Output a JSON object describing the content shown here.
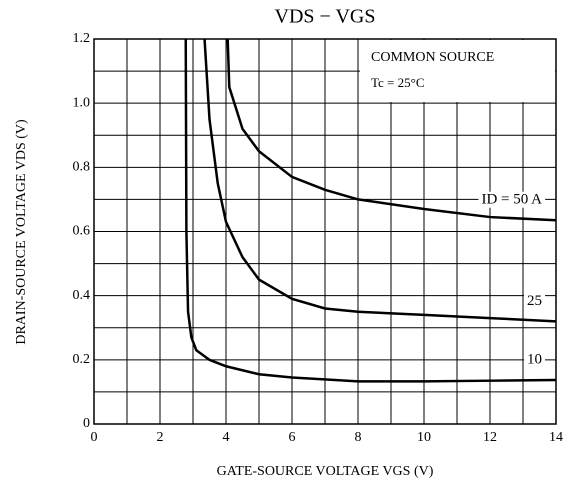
{
  "chart_data": {
    "type": "line",
    "title": "VDS − VGS",
    "x_label": "GATE-SOURCE VOLTAGE  VGS  (V)",
    "y_label": "DRAIN-SOURCE VOLTAGE  VDS  (V)",
    "annotations": [
      "COMMON SOURCE",
      "Tc = 25°C"
    ],
    "xlim": [
      0,
      14
    ],
    "xticks": [
      0,
      2,
      4,
      6,
      8,
      10,
      12,
      14
    ],
    "ylim": [
      0,
      1.2
    ],
    "yticks": [
      0,
      0.2,
      0.4,
      0.6,
      0.8,
      {
        "value": 1,
        "label": "1.0"
      },
      1.2
    ],
    "grid": true,
    "series": [
      {
        "name": "ID = 50 A",
        "color": "#000000",
        "x": [
          4.05,
          4.1,
          4.5,
          5,
          6,
          7,
          8,
          10,
          12,
          14
        ],
        "values": [
          1.2,
          1.05,
          0.92,
          0.85,
          0.77,
          0.73,
          0.7,
          0.67,
          0.645,
          0.635
        ]
      },
      {
        "name": "25",
        "color": "#000000",
        "x": [
          3.35,
          3.5,
          3.75,
          4,
          4.5,
          5,
          6,
          7,
          8,
          10,
          12,
          14
        ],
        "values": [
          1.2,
          0.95,
          0.75,
          0.63,
          0.52,
          0.45,
          0.39,
          0.36,
          0.35,
          0.34,
          0.33,
          0.32
        ]
      },
      {
        "name": "10",
        "color": "#000000",
        "x": [
          2.78,
          2.8,
          2.85,
          2.95,
          3.1,
          3.5,
          4,
          5,
          6,
          8,
          10,
          12,
          14
        ],
        "values": [
          1.2,
          0.6,
          0.35,
          0.27,
          0.23,
          0.2,
          0.18,
          0.155,
          0.145,
          0.133,
          0.133,
          0.135,
          0.137
        ]
      }
    ]
  }
}
